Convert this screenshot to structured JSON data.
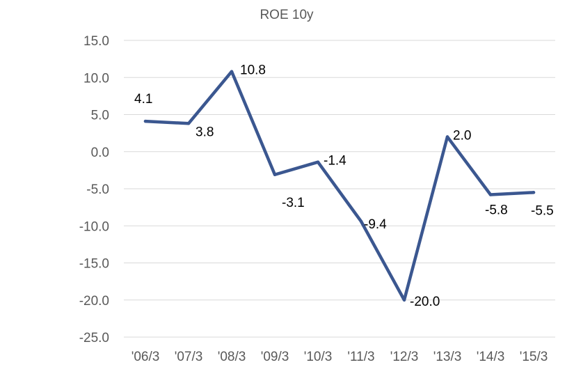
{
  "chart_data": {
    "type": "line",
    "title": "ROE  10y",
    "xlabel": "",
    "ylabel": "",
    "categories": [
      "'06/3",
      "'07/3",
      "'08/3",
      "'09/3",
      "'10/3",
      "'11/3",
      "'12/3",
      "'13/3",
      "'14/3",
      "'15/3"
    ],
    "series": [
      {
        "values": [
          4.1,
          3.8,
          10.8,
          -3.1,
          -1.4,
          -9.4,
          -20.0,
          2.0,
          -5.8,
          -5.5
        ],
        "data_labels": [
          "4.1",
          "3.8",
          "10.8",
          "-3.1",
          "-1.4",
          "-9.4",
          "-20.0",
          "2.0",
          "-5.8",
          "-5.5"
        ],
        "color": "#3b5790"
      }
    ],
    "ylim": [
      -25,
      15
    ],
    "yticks": [
      15,
      10,
      5,
      0,
      -5,
      -10,
      -15,
      -20,
      -25
    ],
    "ytick_labels": [
      "15.0",
      "10.0",
      "5.0",
      "0.0",
      "-5.0",
      "-10.0",
      "-15.0",
      "-20.0",
      "-25.0"
    ],
    "grid": true,
    "legend": "none"
  }
}
